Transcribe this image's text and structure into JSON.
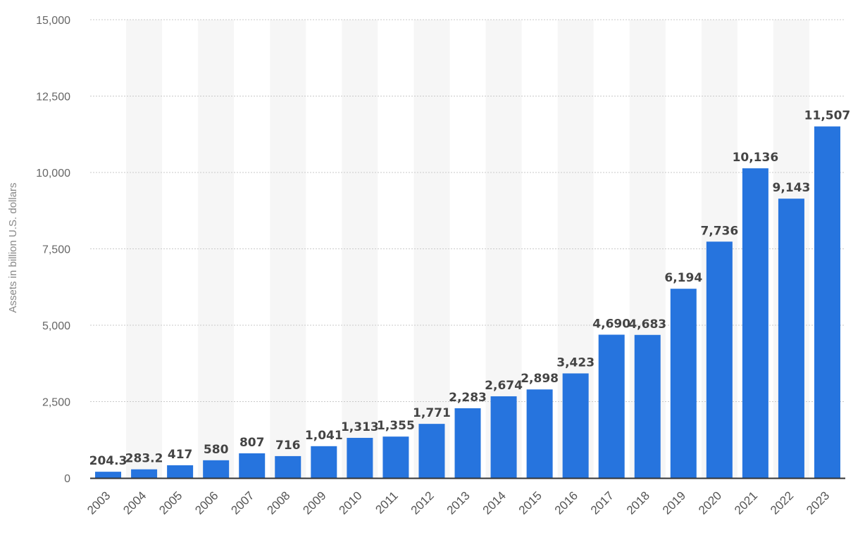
{
  "chart_data": {
    "type": "bar",
    "title": "",
    "xlabel": "",
    "ylabel": "Assets in billion U.S. dollars",
    "ylim": [
      0,
      15000
    ],
    "yticks": [
      0,
      2500,
      5000,
      7500,
      10000,
      12500,
      15000
    ],
    "ytick_labels": [
      "0",
      "2,500",
      "5,000",
      "7,500",
      "10,000",
      "12,500",
      "15,000"
    ],
    "grid": true,
    "categories": [
      "2003",
      "2004",
      "2005",
      "2006",
      "2007",
      "2008",
      "2009",
      "2010",
      "2011",
      "2012",
      "2013",
      "2014",
      "2015",
      "2016",
      "2017",
      "2018",
      "2019",
      "2020",
      "2021",
      "2022",
      "2023"
    ],
    "values": [
      204.3,
      283.2,
      417,
      580,
      807,
      716,
      1041,
      1313,
      1355,
      1771,
      2283,
      2674,
      2898,
      3423,
      4690,
      4683,
      6194,
      7736,
      10136,
      9143,
      11507
    ],
    "value_labels": [
      "204.3",
      "283.2",
      "417",
      "580",
      "807",
      "716",
      "1,041",
      "1,313",
      "1,355",
      "1,771",
      "2,283",
      "2,674",
      "2,898",
      "3,423",
      "4,690",
      "4,683",
      "6,194",
      "7,736",
      "10,136",
      "9,143",
      "11,507"
    ],
    "colors": {
      "bar": "#2674de",
      "band": "#f6f6f6",
      "grid": "#c9c9c9",
      "axis": "#333333"
    }
  }
}
